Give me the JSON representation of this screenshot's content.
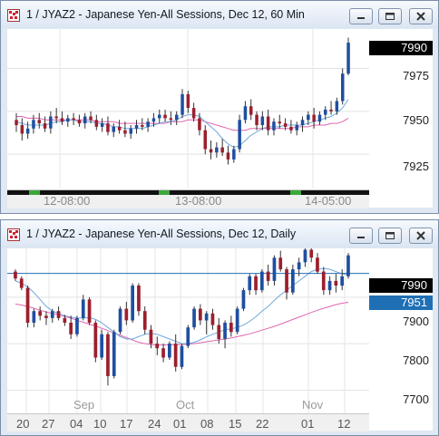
{
  "top_window": {
    "title": "1 / JYAZ2 - Japanese Yen-All Sessions, Dec 12, 60 Min",
    "price_labels": [
      "7975",
      "7950",
      "7925"
    ],
    "last_price": "7990",
    "time_labels": [
      "12-08:00",
      "13-08:00",
      "14-05:00"
    ],
    "colors": {
      "up": "#1f4fa0",
      "down": "#9c1f2c",
      "ma_fast": "#6fa8dc",
      "ma_slow": "#e066b0"
    }
  },
  "bottom_window": {
    "title": "1 / JYAZ2 - Japanese Yen-All Sessions, Dec 12, Daily",
    "price_labels": [
      "7900",
      "7800",
      "7700"
    ],
    "last_price": "7990",
    "line_price": "7951",
    "month_labels": [
      "Sep",
      "Oct",
      "Nov"
    ],
    "day_labels": [
      "20",
      "27",
      "04",
      "10",
      "17",
      "24",
      "01",
      "08",
      "15",
      "22",
      "01",
      "12"
    ]
  },
  "chart_data": [
    {
      "type": "candlestick",
      "title": "1 / JYAZ2 - Japanese Yen-All Sessions, Dec 12, 60 Min",
      "x_tick_labels": [
        "12-08:00",
        "13-08:00",
        "14-05:00"
      ],
      "y_tick_labels": [
        7975,
        7950,
        7925
      ],
      "ylim": [
        7905,
        7998
      ],
      "last_price": 7990,
      "candles": [
        [
          7945,
          7949,
          7938,
          7942
        ],
        [
          7942,
          7946,
          7933,
          7937
        ],
        [
          7937,
          7944,
          7934,
          7940
        ],
        [
          7940,
          7948,
          7937,
          7945
        ],
        [
          7945,
          7949,
          7940,
          7943
        ],
        [
          7943,
          7947,
          7938,
          7940
        ],
        [
          7940,
          7950,
          7937,
          7947
        ],
        [
          7947,
          7952,
          7943,
          7946
        ],
        [
          7946,
          7950,
          7942,
          7944
        ],
        [
          7944,
          7948,
          7941,
          7946
        ],
        [
          7946,
          7949,
          7942,
          7945
        ],
        [
          7945,
          7948,
          7941,
          7943
        ],
        [
          7943,
          7949,
          7940,
          7947
        ],
        [
          7947,
          7950,
          7943,
          7945
        ],
        [
          7945,
          7948,
          7939,
          7941
        ],
        [
          7941,
          7946,
          7938,
          7943
        ],
        [
          7943,
          7947,
          7936,
          7938
        ],
        [
          7938,
          7943,
          7935,
          7941
        ],
        [
          7941,
          7945,
          7937,
          7939
        ],
        [
          7939,
          7944,
          7935,
          7937
        ],
        [
          7937,
          7942,
          7934,
          7940
        ],
        [
          7940,
          7945,
          7937,
          7942
        ],
        [
          7942,
          7946,
          7939,
          7941
        ],
        [
          7941,
          7946,
          7938,
          7944
        ],
        [
          7944,
          7949,
          7941,
          7946
        ],
        [
          7946,
          7951,
          7943,
          7948
        ],
        [
          7948,
          7951,
          7944,
          7946
        ],
        [
          7946,
          7950,
          7942,
          7945
        ],
        [
          7945,
          7950,
          7942,
          7948
        ],
        [
          7948,
          7963,
          7946,
          7960
        ],
        [
          7960,
          7962,
          7949,
          7952
        ],
        [
          7952,
          7955,
          7944,
          7946
        ],
        [
          7946,
          7949,
          7936,
          7939
        ],
        [
          7939,
          7942,
          7925,
          7928
        ],
        [
          7928,
          7933,
          7922,
          7926
        ],
        [
          7926,
          7932,
          7923,
          7929
        ],
        [
          7929,
          7934,
          7924,
          7926
        ],
        [
          7926,
          7930,
          7919,
          7922
        ],
        [
          7922,
          7930,
          7920,
          7928
        ],
        [
          7928,
          7948,
          7926,
          7945
        ],
        [
          7945,
          7956,
          7943,
          7953
        ],
        [
          7953,
          7957,
          7945,
          7948
        ],
        [
          7948,
          7950,
          7939,
          7942
        ],
        [
          7942,
          7950,
          7939,
          7947
        ],
        [
          7947,
          7951,
          7936,
          7939
        ],
        [
          7939,
          7946,
          7936,
          7944
        ],
        [
          7944,
          7948,
          7940,
          7943
        ],
        [
          7943,
          7946,
          7939,
          7941
        ],
        [
          7941,
          7945,
          7937,
          7939
        ],
        [
          7939,
          7944,
          7936,
          7942
        ],
        [
          7942,
          7947,
          7938,
          7945
        ],
        [
          7945,
          7950,
          7942,
          7948
        ],
        [
          7948,
          7952,
          7940,
          7944
        ],
        [
          7944,
          7950,
          7942,
          7948
        ],
        [
          7948,
          7953,
          7945,
          7951
        ],
        [
          7951,
          7956,
          7948,
          7950
        ],
        [
          7950,
          7958,
          7948,
          7956
        ],
        [
          7956,
          7975,
          7954,
          7972
        ],
        [
          7972,
          7993,
          7971,
          7990
        ]
      ],
      "ma_fast": [
        7944,
        7943,
        7942,
        7942,
        7942,
        7942,
        7943,
        7944,
        7944,
        7945,
        7945,
        7944,
        7944,
        7944,
        7943,
        7943,
        7942,
        7941,
        7941,
        7940,
        7940,
        7940,
        7940,
        7941,
        7942,
        7943,
        7944,
        7944,
        7945,
        7947,
        7948,
        7948,
        7947,
        7944,
        7941,
        7938,
        7934,
        7931,
        7929,
        7930,
        7933,
        7936,
        7938,
        7940,
        7941,
        7941,
        7941,
        7942,
        7942,
        7942,
        7942,
        7943,
        7944,
        7945,
        7946,
        7947,
        7949,
        7952,
        7957
      ],
      "ma_slow": [
        7947,
        7947,
        7946,
        7946,
        7946,
        7945,
        7945,
        7945,
        7945,
        7945,
        7945,
        7945,
        7945,
        7945,
        7944,
        7944,
        7944,
        7944,
        7943,
        7943,
        7943,
        7943,
        7943,
        7943,
        7943,
        7943,
        7943,
        7944,
        7944,
        7944,
        7945,
        7945,
        7945,
        7944,
        7943,
        7942,
        7941,
        7940,
        7939,
        7939,
        7939,
        7940,
        7940,
        7940,
        7940,
        7940,
        7940,
        7940,
        7940,
        7941,
        7941,
        7941,
        7942,
        7942,
        7942,
        7943,
        7943,
        7944,
        7946
      ]
    },
    {
      "type": "candlestick",
      "title": "1 / JYAZ2 - Japanese Yen-All Sessions, Dec 12, Daily",
      "x_tick_labels": [
        "20",
        "27",
        "04",
        "10",
        "17",
        "24",
        "01",
        "08",
        "15",
        "22",
        "01",
        "12"
      ],
      "month_labels": [
        "Sep",
        "Oct",
        "Nov"
      ],
      "y_tick_labels": [
        7900,
        7800,
        7700
      ],
      "ylim": [
        7650,
        8005
      ],
      "last_price": 7990,
      "horizontal_line": 7951,
      "candles": [
        [
          7955,
          7960,
          7935,
          7940
        ],
        [
          7940,
          7945,
          7915,
          7920
        ],
        [
          7920,
          7925,
          7835,
          7845
        ],
        [
          7845,
          7875,
          7835,
          7870
        ],
        [
          7870,
          7880,
          7850,
          7860
        ],
        [
          7860,
          7870,
          7840,
          7855
        ],
        [
          7855,
          7875,
          7845,
          7870
        ],
        [
          7870,
          7880,
          7850,
          7855
        ],
        [
          7855,
          7862,
          7838,
          7845
        ],
        [
          7845,
          7860,
          7810,
          7820
        ],
        [
          7820,
          7860,
          7815,
          7855
        ],
        [
          7855,
          7905,
          7850,
          7895
        ],
        [
          7895,
          7900,
          7840,
          7845
        ],
        [
          7845,
          7850,
          7760,
          7770
        ],
        [
          7770,
          7830,
          7765,
          7820
        ],
        [
          7820,
          7825,
          7710,
          7730
        ],
        [
          7730,
          7830,
          7725,
          7825
        ],
        [
          7825,
          7880,
          7820,
          7875
        ],
        [
          7875,
          7890,
          7840,
          7850
        ],
        [
          7850,
          7930,
          7845,
          7925
        ],
        [
          7925,
          7930,
          7860,
          7870
        ],
        [
          7870,
          7880,
          7820,
          7830
        ],
        [
          7830,
          7840,
          7790,
          7800
        ],
        [
          7800,
          7815,
          7775,
          7790
        ],
        [
          7790,
          7800,
          7760,
          7770
        ],
        [
          7770,
          7805,
          7765,
          7800
        ],
        [
          7800,
          7820,
          7740,
          7750
        ],
        [
          7750,
          7800,
          7745,
          7795
        ],
        [
          7795,
          7840,
          7790,
          7835
        ],
        [
          7835,
          7880,
          7830,
          7875
        ],
        [
          7875,
          7885,
          7840,
          7850
        ],
        [
          7850,
          7870,
          7820,
          7865
        ],
        [
          7865,
          7875,
          7830,
          7840
        ],
        [
          7840,
          7855,
          7800,
          7810
        ],
        [
          7810,
          7850,
          7790,
          7845
        ],
        [
          7845,
          7860,
          7815,
          7825
        ],
        [
          7825,
          7880,
          7820,
          7875
        ],
        [
          7875,
          7920,
          7870,
          7915
        ],
        [
          7915,
          7950,
          7905,
          7945
        ],
        [
          7945,
          7950,
          7905,
          7915
        ],
        [
          7915,
          7960,
          7910,
          7955
        ],
        [
          7955,
          7970,
          7925,
          7935
        ],
        [
          7935,
          7990,
          7925,
          7985
        ],
        [
          7985,
          8000,
          7955,
          7960
        ],
        [
          7960,
          7965,
          7895,
          7910
        ],
        [
          7910,
          7970,
          7905,
          7960
        ],
        [
          7960,
          7985,
          7945,
          7975
        ],
        [
          7975,
          8010,
          7965,
          8002
        ],
        [
          8002,
          8005,
          7975,
          7985
        ],
        [
          7985,
          7995,
          7950,
          7955
        ],
        [
          7955,
          7965,
          7905,
          7915
        ],
        [
          7915,
          7945,
          7905,
          7935
        ],
        [
          7935,
          7950,
          7910,
          7925
        ],
        [
          7925,
          7960,
          7915,
          7945
        ],
        [
          7945,
          7995,
          7940,
          7990
        ]
      ],
      "ma_fast": [
        7935,
        7930,
        7922,
        7910,
        7895,
        7880,
        7870,
        7865,
        7860,
        7857,
        7855,
        7855,
        7856,
        7852,
        7845,
        7835,
        7825,
        7815,
        7810,
        7810,
        7815,
        7820,
        7822,
        7820,
        7815,
        7810,
        7805,
        7800,
        7800,
        7803,
        7808,
        7815,
        7820,
        7825,
        7830,
        7832,
        7835,
        7840,
        7848,
        7858,
        7870,
        7880,
        7893,
        7905,
        7915,
        7925,
        7935,
        7945,
        7955,
        7960,
        7962,
        7960,
        7955,
        7950,
        7948
      ],
      "ma_slow": [
        7885,
        7883,
        7880,
        7876,
        7872,
        7868,
        7865,
        7862,
        7858,
        7855,
        7850,
        7846,
        7842,
        7838,
        7833,
        7828,
        7823,
        7818,
        7813,
        7808,
        7803,
        7800,
        7798,
        7797,
        7797,
        7797,
        7798,
        7798,
        7799,
        7800,
        7802,
        7804,
        7806,
        7808,
        7810,
        7812,
        7815,
        7818,
        7821,
        7825,
        7829,
        7833,
        7837,
        7842,
        7847,
        7852,
        7857,
        7862,
        7867,
        7872,
        7876,
        7880,
        7884,
        7887,
        7889
      ]
    }
  ]
}
